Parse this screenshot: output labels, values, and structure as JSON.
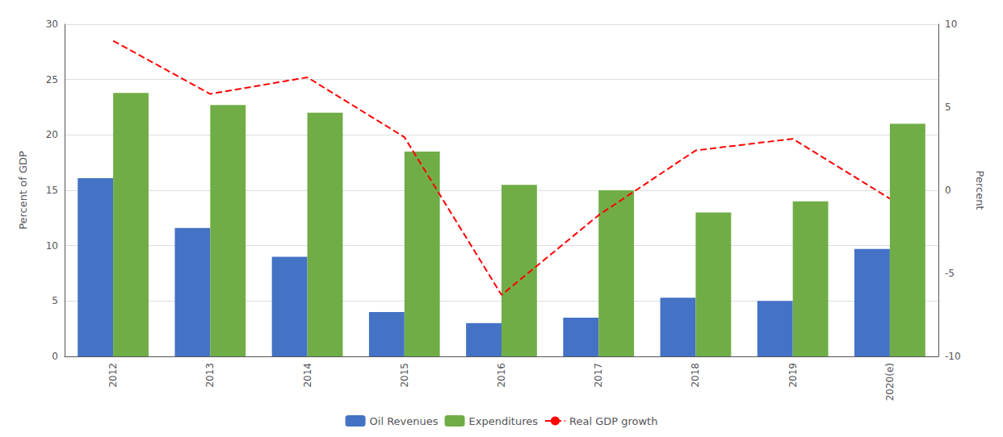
{
  "chart_data": {
    "type": "bar",
    "categories": [
      "2012",
      "2013",
      "2014",
      "2015",
      "2016",
      "2017",
      "2018",
      "2019",
      "2020(e)"
    ],
    "series": [
      {
        "name": "Oil Revenues",
        "color": "#4472C4",
        "values": [
          16.1,
          11.6,
          9.0,
          4.0,
          3.0,
          3.5,
          5.3,
          5.0,
          9.7
        ]
      },
      {
        "name": "Expenditures",
        "color": "#70AD47",
        "values": [
          23.8,
          22.7,
          22.0,
          18.5,
          15.5,
          15.0,
          13.0,
          14.0,
          21.0
        ]
      },
      {
        "name": "Real GDP growth",
        "type": "line",
        "line_style": "dashed",
        "axis": "y2",
        "color": "#FF0000",
        "values": [
          9.0,
          5.8,
          6.8,
          3.2,
          -6.3,
          -1.5,
          2.4,
          3.1,
          -0.5
        ]
      }
    ],
    "ylabel": "Percent of GDP",
    "y2label": "Percent",
    "ylim": [
      0,
      30
    ],
    "yticks": [
      0,
      5,
      10,
      15,
      20,
      25,
      30
    ],
    "y2lim": [
      -10,
      10
    ],
    "y2ticks": [
      -10,
      -5,
      0,
      5,
      10
    ],
    "grid": true,
    "legend": "bottom"
  }
}
